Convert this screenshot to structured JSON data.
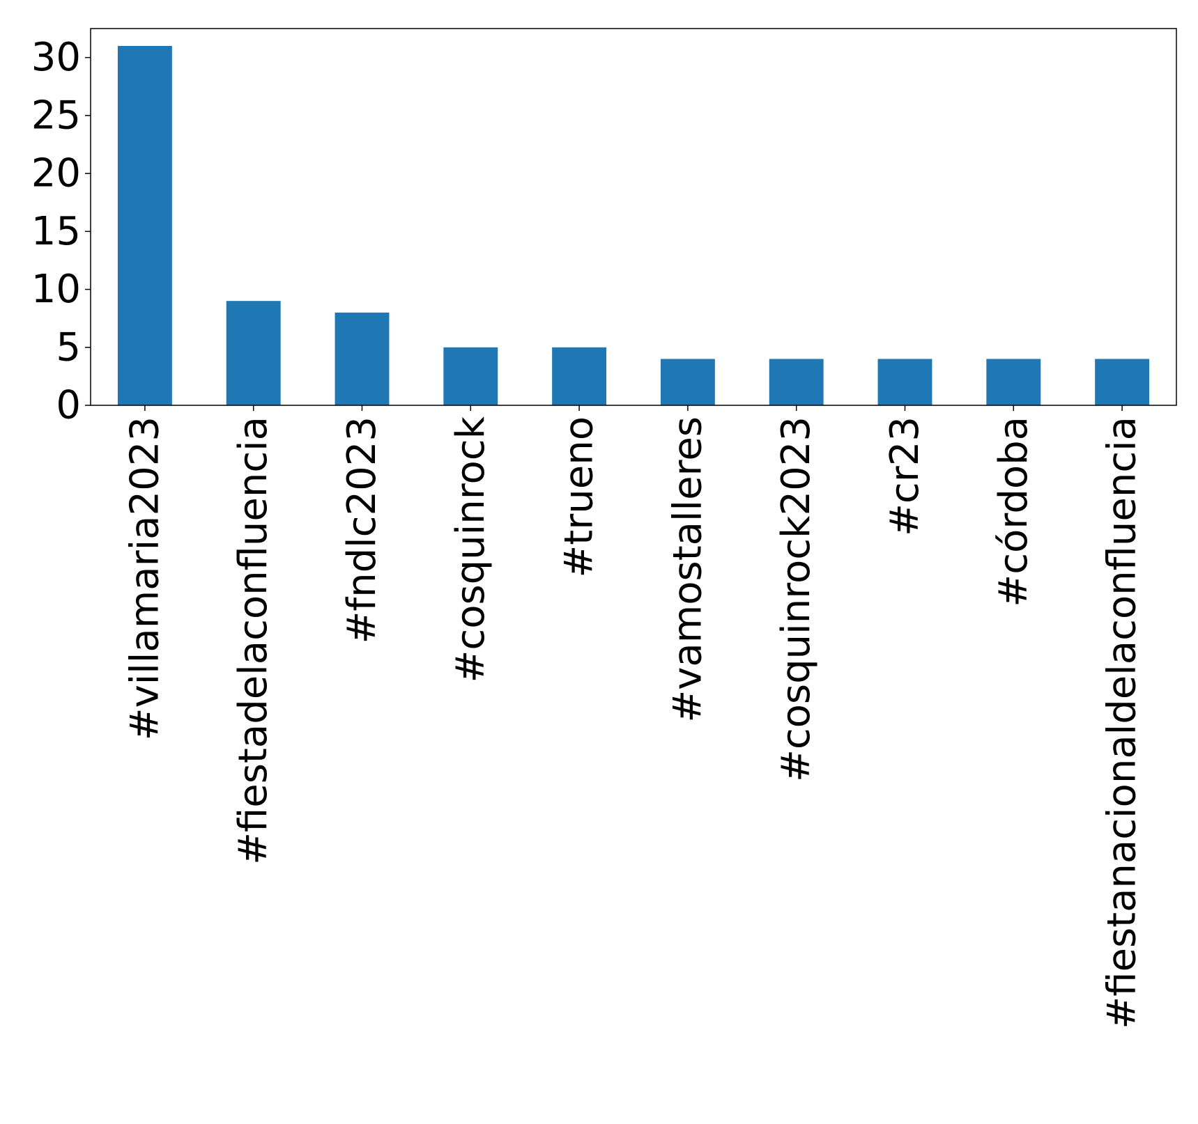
{
  "chart_data": {
    "type": "bar",
    "title": "",
    "xlabel": "",
    "ylabel": "",
    "categories": [
      "#villamaria2023",
      "#fiestadelaconfluencia",
      "#fndlc2023",
      "#cosquinrock",
      "#trueno",
      "#vamostalleres",
      "#cosquinrock2023",
      "#cr23",
      "#córdoba",
      "#fiestanacionaldelaconfluencia"
    ],
    "values": [
      31,
      9,
      8,
      5,
      5,
      4,
      4,
      4,
      4,
      4
    ],
    "ylim": [
      0,
      32.5
    ],
    "yticks": [
      0,
      5,
      10,
      15,
      20,
      25,
      30
    ],
    "grid": false,
    "legend": "none",
    "bar_color": "#1f77b4"
  }
}
